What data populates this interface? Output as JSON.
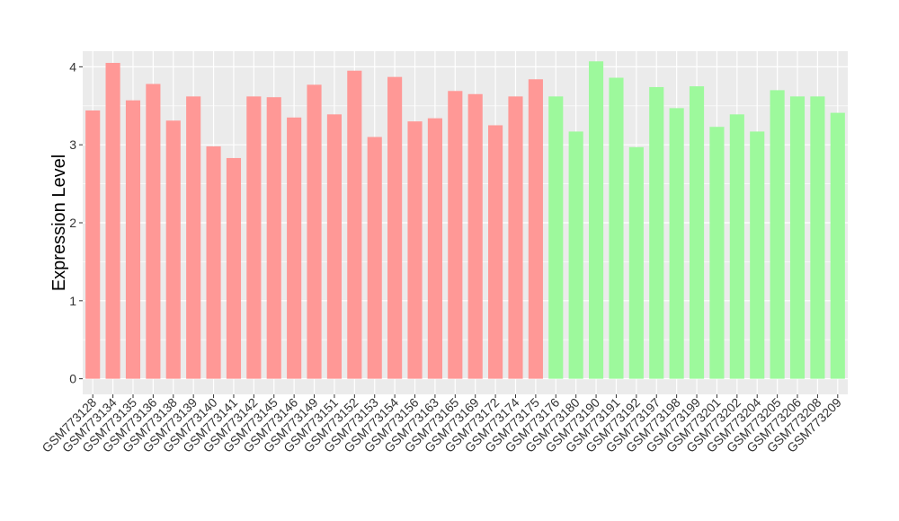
{
  "chart_data": {
    "type": "bar",
    "title": "",
    "xlabel": "",
    "ylabel": "Expression Level",
    "ylim": [
      -0.2,
      4.2
    ],
    "yticks": [
      0,
      1,
      2,
      3,
      4
    ],
    "grid": true,
    "legend": "none",
    "colors": {
      "group1": "#FF9896",
      "group2": "#9DF99C",
      "panel": "#EBEBEB",
      "grid": "#FFFFFF"
    },
    "categories": [
      "GSM773128",
      "GSM773134",
      "GSM773135",
      "GSM773136",
      "GSM773138",
      "GSM773139",
      "GSM773140",
      "GSM773141",
      "GSM773142",
      "GSM773145",
      "GSM773146",
      "GSM773149",
      "GSM773151",
      "GSM773152",
      "GSM773153",
      "GSM773154",
      "GSM773156",
      "GSM773163",
      "GSM773165",
      "GSM773169",
      "GSM773172",
      "GSM773174",
      "GSM773175",
      "GSM773176",
      "GSM773180",
      "GSM773190",
      "GSM773191",
      "GSM773192",
      "GSM773197",
      "GSM773198",
      "GSM773199",
      "GSM773201",
      "GSM773202",
      "GSM773204",
      "GSM773205",
      "GSM773206",
      "GSM773208",
      "GSM773209"
    ],
    "values": [
      3.44,
      4.05,
      3.57,
      3.78,
      3.31,
      3.62,
      2.98,
      2.83,
      3.62,
      3.61,
      3.35,
      3.77,
      3.39,
      3.95,
      3.1,
      3.87,
      3.3,
      3.34,
      3.69,
      3.65,
      3.25,
      3.62,
      3.84,
      3.62,
      3.17,
      4.07,
      3.86,
      2.97,
      3.74,
      3.47,
      3.75,
      3.23,
      3.39,
      3.17,
      3.7,
      3.62,
      3.62,
      3.41
    ],
    "groups": [
      1,
      1,
      1,
      1,
      1,
      1,
      1,
      1,
      1,
      1,
      1,
      1,
      1,
      1,
      1,
      1,
      1,
      1,
      1,
      1,
      1,
      1,
      1,
      2,
      2,
      2,
      2,
      2,
      2,
      2,
      2,
      2,
      2,
      2,
      2,
      2,
      2,
      2
    ]
  }
}
